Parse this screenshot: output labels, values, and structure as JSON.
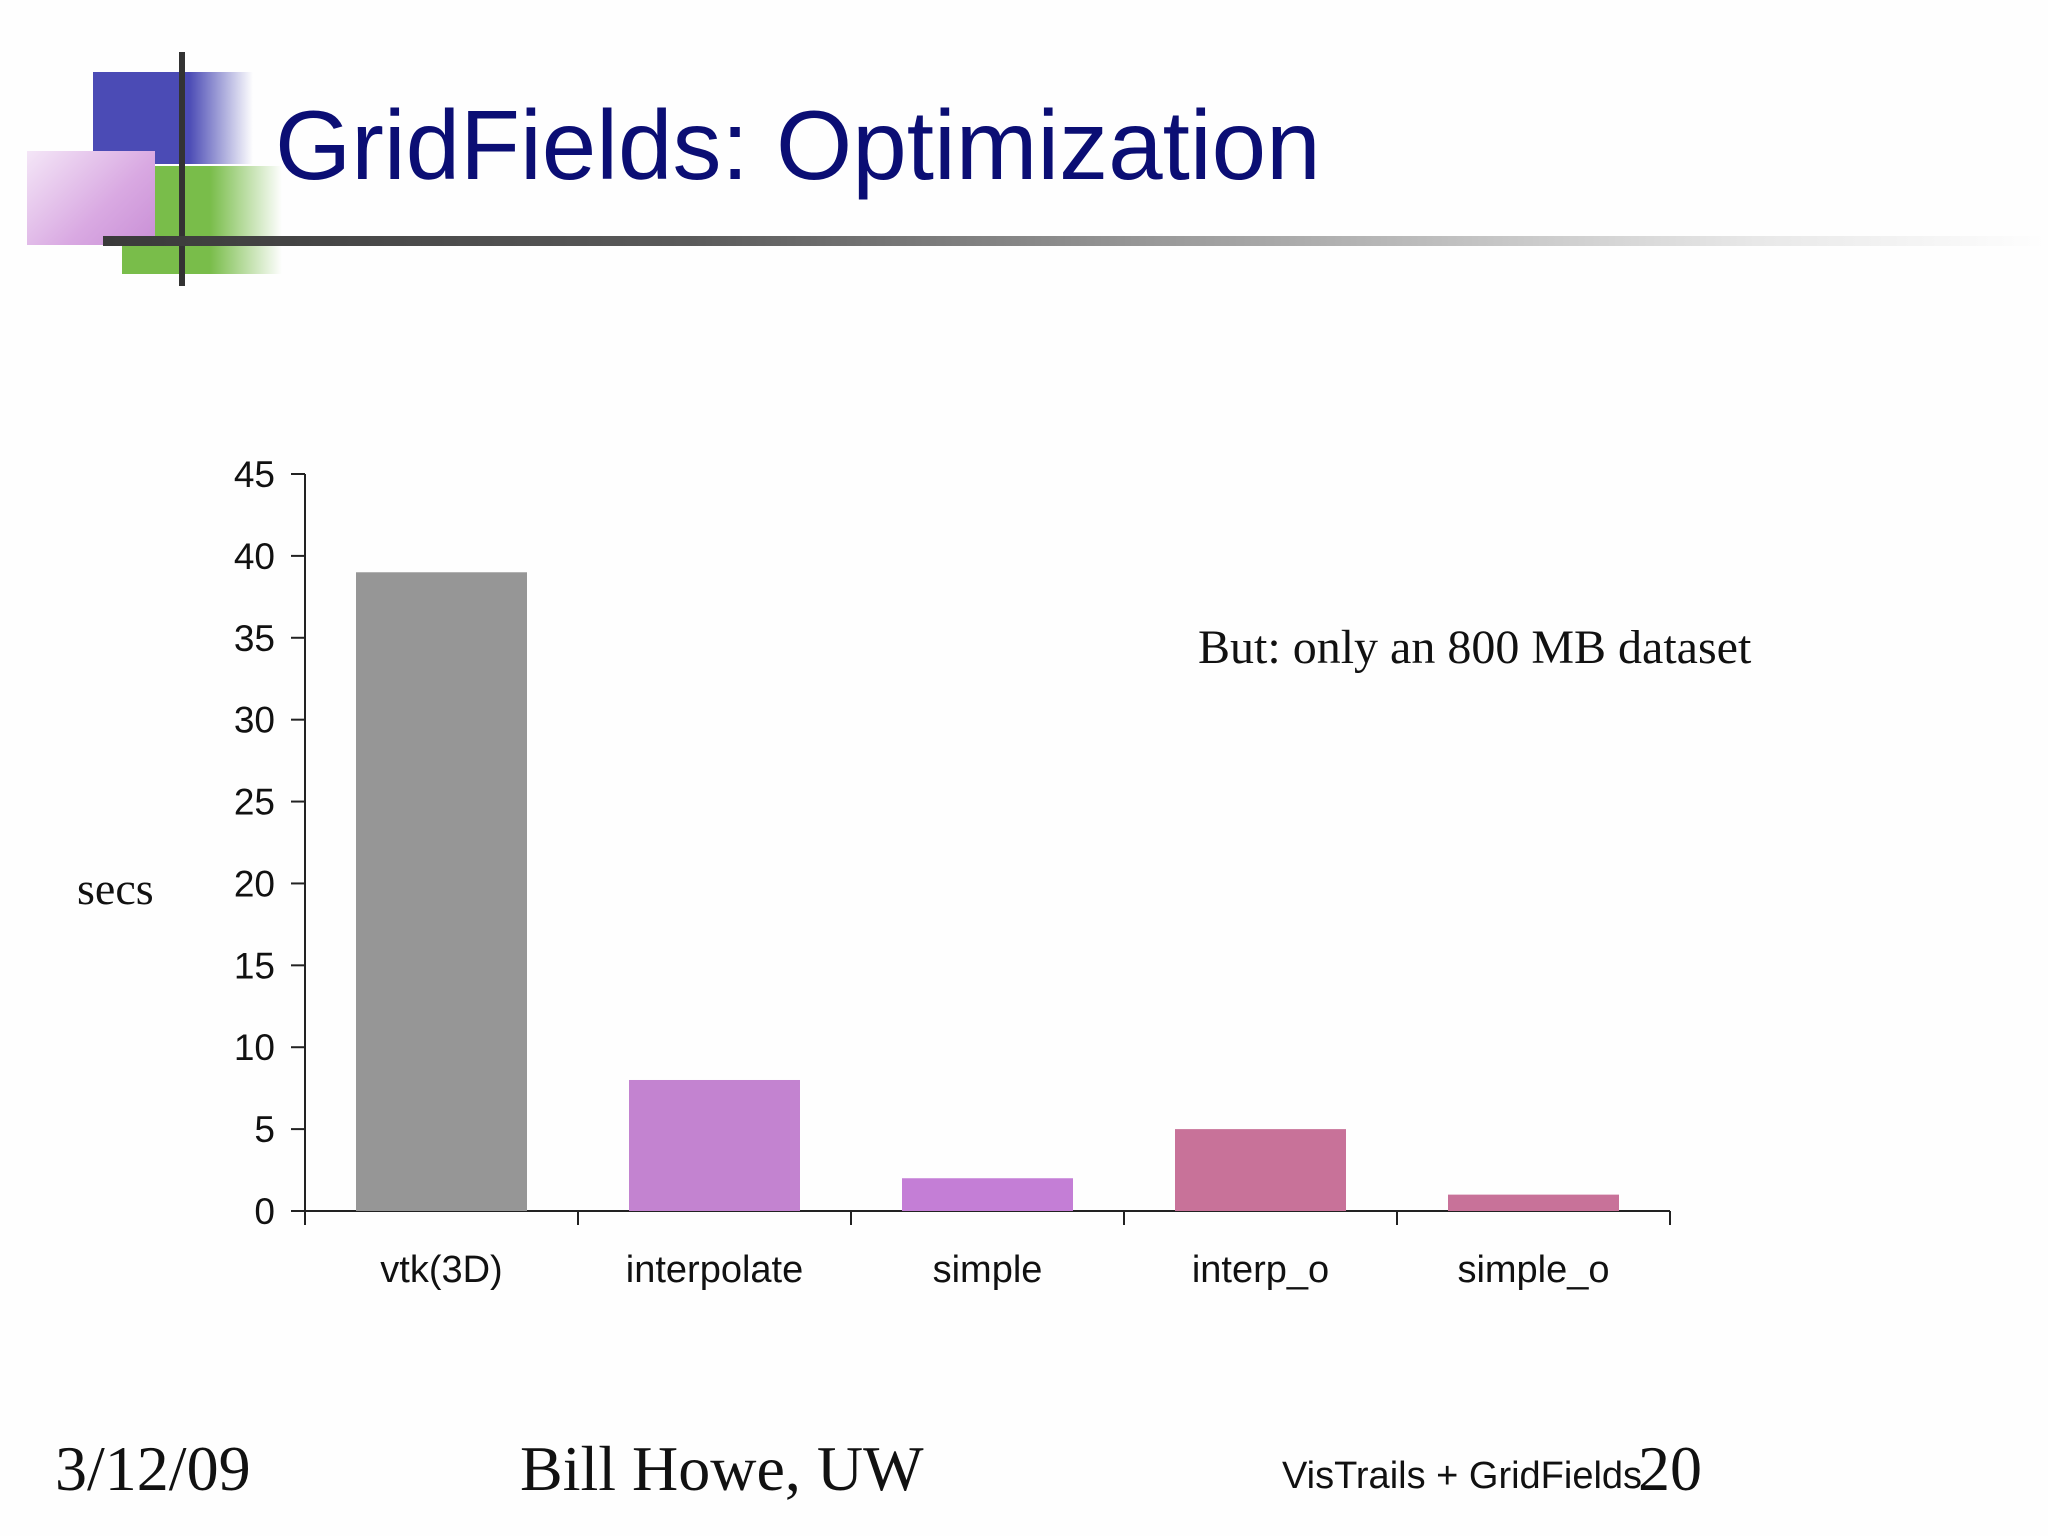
{
  "slide": {
    "title": "GridFields: Optimization",
    "annotation": "But: only an 800 MB dataset"
  },
  "footer": {
    "date": "3/12/09",
    "author": "Bill Howe, UW",
    "talk": "VisTrails + GridFields",
    "page": "20"
  },
  "colors": {
    "title": "#0b0e74",
    "deco_blue": "#4b4bb5",
    "deco_green": "#79bd4a",
    "deco_purple": "#c98fd6"
  },
  "chart_data": {
    "type": "bar",
    "categories": [
      "vtk(3D)",
      "interpolate",
      "simple",
      "interp_o",
      "simple_o"
    ],
    "values": [
      39,
      8,
      2,
      5,
      1
    ],
    "colors": [
      "#969696",
      "#c383d0",
      "#c47ed6",
      "#c87299",
      "#c87299"
    ],
    "title": "",
    "xlabel": "",
    "ylabel": "secs",
    "ylim": [
      0,
      45
    ],
    "yticks": [
      0,
      5,
      10,
      15,
      20,
      25,
      30,
      35,
      40,
      45
    ],
    "grid": false,
    "legend": "none"
  }
}
